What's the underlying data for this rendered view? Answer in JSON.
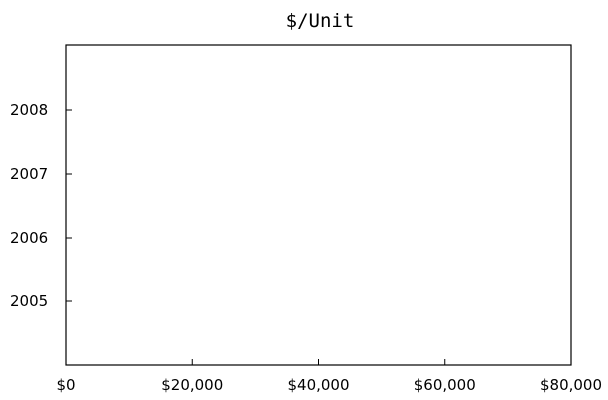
{
  "chart_data": {
    "type": "bar",
    "orientation": "horizontal",
    "title": "$/Unit",
    "xlabel": "",
    "ylabel": "",
    "categories": [
      "2005",
      "2006",
      "2007",
      "2008"
    ],
    "series": [
      {
        "values": [
          0,
          0,
          0,
          0
        ]
      }
    ],
    "x_tick_labels": [
      "$0",
      "$20,000",
      "$40,000",
      "$60,000",
      "$80,000"
    ],
    "x_ticks": [
      0,
      20000,
      40000,
      60000,
      80000
    ],
    "xlim": [
      0,
      80000
    ],
    "y_tick_labels": [
      "2005",
      "2006",
      "2007",
      "2008"
    ],
    "grid": false,
    "legend": "none",
    "colors": {
      "axis": "#000000",
      "background": "#ffffff"
    }
  }
}
